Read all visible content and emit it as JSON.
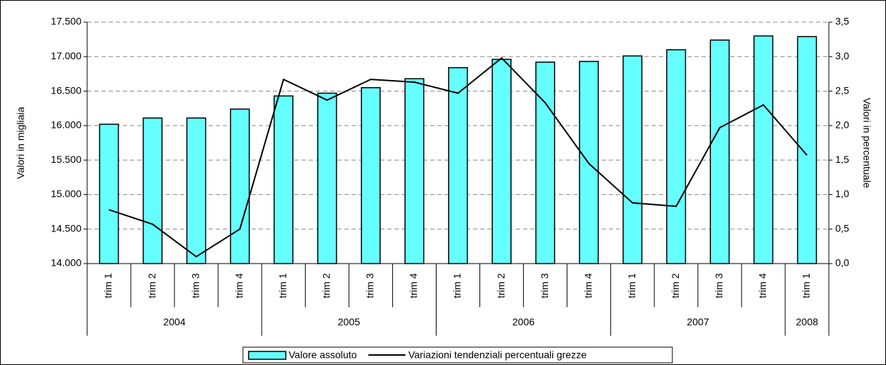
{
  "chart_data": {
    "type": "bar-line",
    "groups": [
      {
        "label": "2004",
        "categories": [
          "trim 1",
          "trim 2",
          "trim 3",
          "trim 4"
        ]
      },
      {
        "label": "2005",
        "categories": [
          "trim 1",
          "trim 2",
          "trim 3",
          "trim 4"
        ]
      },
      {
        "label": "2006",
        "categories": [
          "trim 1",
          "trim 2",
          "trim 3",
          "trim 4"
        ]
      },
      {
        "label": "2007",
        "categories": [
          "trim 1",
          "trim 2",
          "trim 3",
          "trim 4"
        ]
      },
      {
        "label": "2008",
        "categories": [
          "trim 1"
        ]
      }
    ],
    "series": [
      {
        "name": "Valore assoluto",
        "type": "bar",
        "color": "#66ffff",
        "axis": "y",
        "values": [
          16020,
          16110,
          16110,
          16240,
          16430,
          16470,
          16550,
          16680,
          16840,
          16960,
          16920,
          16930,
          17010,
          17100,
          17240,
          17300,
          17290
        ]
      },
      {
        "name": "Variazioni tendenziali percentuali grezze",
        "type": "line",
        "color": "#000000",
        "axis": "y2",
        "values": [
          0.78,
          0.57,
          0.1,
          0.5,
          2.67,
          2.37,
          2.67,
          2.63,
          2.47,
          2.98,
          2.33,
          1.45,
          0.88,
          0.83,
          1.97,
          2.3,
          1.57
        ]
      }
    ],
    "ylabel": "Valori in migliaia",
    "y2label": "Valori in percentuale",
    "ylim": [
      14000,
      17500
    ],
    "yticks": [
      {
        "value": 14000,
        "label": "14.000"
      },
      {
        "value": 14500,
        "label": "14.500"
      },
      {
        "value": 15000,
        "label": "15.000"
      },
      {
        "value": 15500,
        "label": "15.500"
      },
      {
        "value": 16000,
        "label": "16.000"
      },
      {
        "value": 16500,
        "label": "16.500"
      },
      {
        "value": 17000,
        "label": "17.000"
      },
      {
        "value": 17500,
        "label": "17.500"
      }
    ],
    "y2lim": [
      0,
      3.5
    ],
    "y2ticks": [
      {
        "value": 0,
        "label": "0,0"
      },
      {
        "value": 0.5,
        "label": "0,5"
      },
      {
        "value": 1,
        "label": "1,0"
      },
      {
        "value": 1.5,
        "label": "1,5"
      },
      {
        "value": 2,
        "label": "2,0"
      },
      {
        "value": 2.5,
        "label": "2,5"
      },
      {
        "value": 3,
        "label": "3,0"
      },
      {
        "value": 3.5,
        "label": "3,5"
      }
    ],
    "grid": true,
    "legend": "bottom"
  }
}
